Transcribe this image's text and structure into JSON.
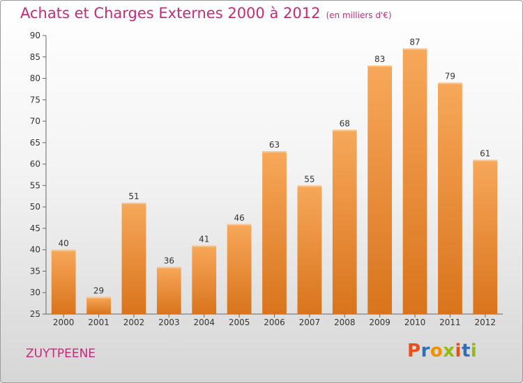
{
  "header": {
    "title": "Achats et Charges Externes 2000 à 2012",
    "unit": "(en milliers d'€)"
  },
  "commune": "ZUYTPEENE",
  "logo": {
    "letters": [
      "P",
      "r",
      "o",
      "x",
      "i",
      "t",
      "i"
    ],
    "colors": [
      "#e94e1b",
      "#2f6fb6",
      "#f29100",
      "#94b814",
      "#e94e1b",
      "#2f6fb6",
      "#94b814"
    ]
  },
  "colors": {
    "bar_top": "#f7a85a",
    "bar_bottom": "#d9741c",
    "axis": "#666666",
    "grid": "#dcdcdc"
  },
  "chart_data": {
    "type": "bar",
    "title": "Achats et Charges Externes 2000 à 2012",
    "subtitle": "(en milliers d'€)",
    "xlabel": "",
    "ylabel": "",
    "categories": [
      "2000",
      "2001",
      "2002",
      "2003",
      "2004",
      "2005",
      "2006",
      "2007",
      "2008",
      "2009",
      "2010",
      "2011",
      "2012"
    ],
    "values": [
      40,
      29,
      51,
      36,
      41,
      46,
      63,
      55,
      68,
      83,
      87,
      79,
      61
    ],
    "ylim": [
      25,
      90
    ],
    "yticks": [
      25,
      30,
      35,
      40,
      45,
      50,
      55,
      60,
      65,
      70,
      75,
      80,
      85,
      90
    ],
    "grid": false,
    "legend": "none"
  }
}
